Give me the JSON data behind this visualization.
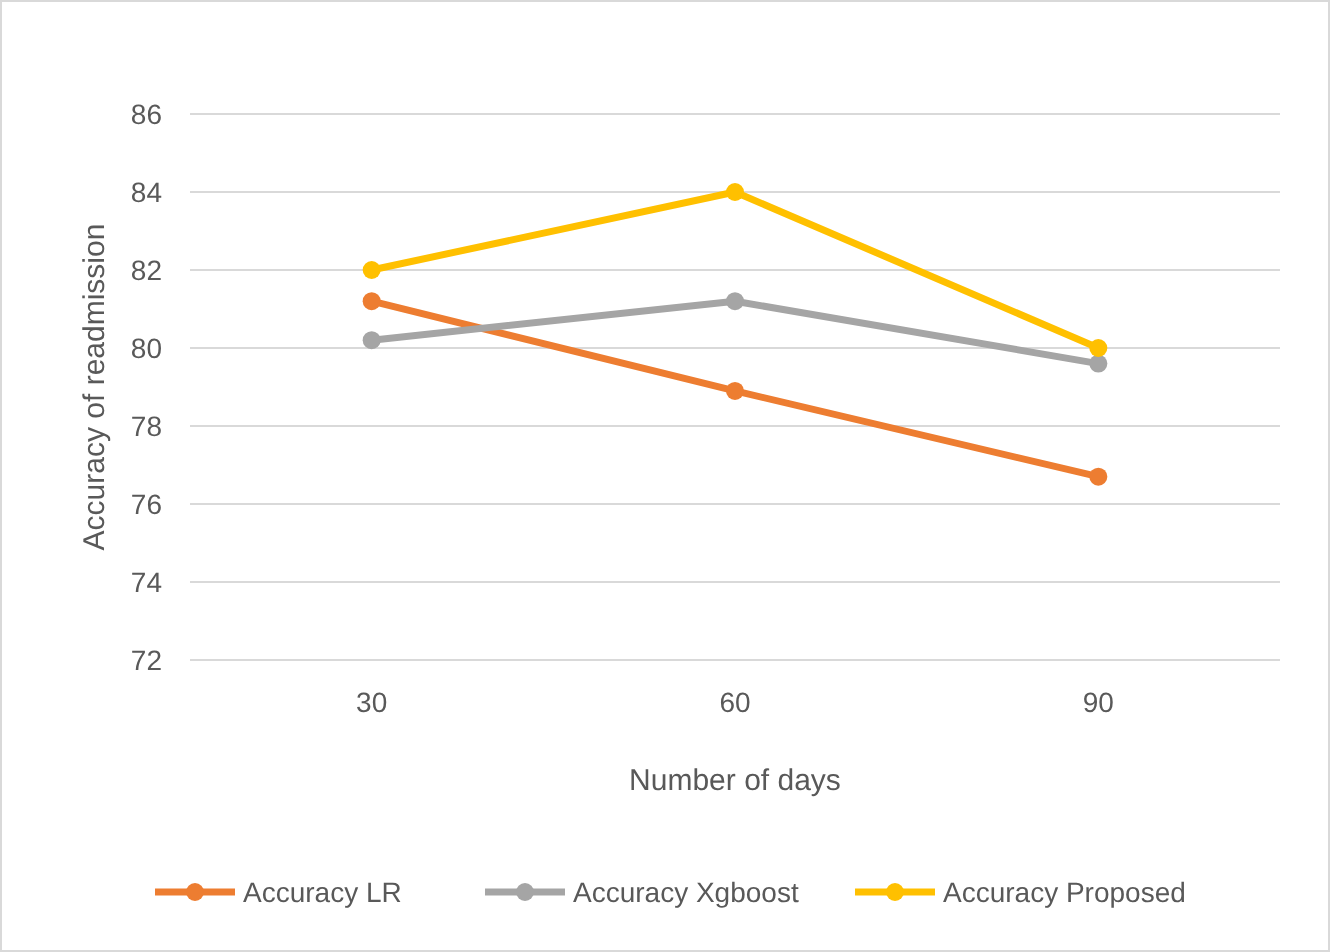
{
  "chart_data": {
    "type": "line",
    "xlabel": "Number of days",
    "ylabel": "Accuracy of readmission",
    "categories": [
      "30",
      "60",
      "90"
    ],
    "series": [
      {
        "name": "Accuracy LR",
        "color": "#ed7d31",
        "values": [
          81.2,
          78.9,
          76.7
        ]
      },
      {
        "name": "Accuracy Xgboost",
        "color": "#a5a5a5",
        "values": [
          80.2,
          81.2,
          79.6
        ]
      },
      {
        "name": "Accuracy Proposed",
        "color": "#ffc000",
        "values": [
          82,
          84,
          80
        ]
      }
    ],
    "ylim": [
      72,
      86
    ],
    "yticks": [
      72,
      74,
      76,
      78,
      80,
      82,
      84,
      86
    ],
    "grid": "y",
    "legend": "bottom",
    "marker": "circle",
    "line_style": "solid"
  }
}
